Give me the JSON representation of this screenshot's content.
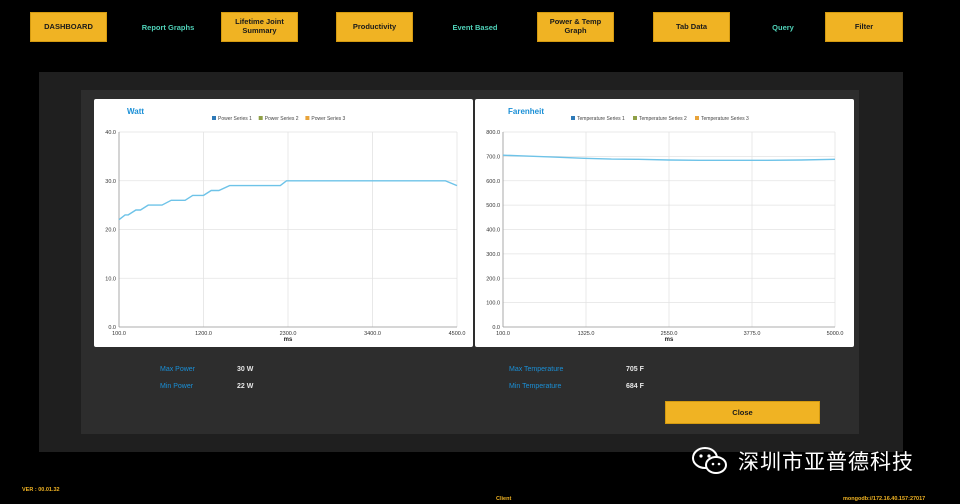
{
  "nav": {
    "dashboard": "DASHBOARD",
    "report_graphs": "Report Graphs",
    "lifetime_joint_summary": "Lifetime Joint Summary",
    "productivity": "Productivity",
    "event_based": "Event Based",
    "power_temp_graph": "Power & Temp Graph",
    "tab_data": "Tab Data",
    "query": "Query",
    "filter": "Filter"
  },
  "colors": {
    "accent": "#f0b323",
    "link": "#4fd1b8",
    "title_blue": "#1a8fd6",
    "series1": "#2e7ab8",
    "series2": "#8fa046",
    "series3": "#e8a33a",
    "line": "#6ec3e8"
  },
  "chart_data": [
    {
      "type": "line",
      "title": "Watt",
      "xlabel": "ms",
      "ylabel": "",
      "x_ticks": [
        "100.0",
        "1200.0",
        "2300.0",
        "3400.0",
        "4500.0"
      ],
      "y_ticks": [
        "0.0",
        "10.0",
        "20.0",
        "30.0",
        "40.0"
      ],
      "xlim": [
        100,
        4500
      ],
      "ylim": [
        0,
        40
      ],
      "grid": true,
      "legend_position": "top-center",
      "legend": [
        "Power Series 1",
        "Power Series 2",
        "Power Series 3"
      ],
      "series": [
        {
          "name": "Power Series 1",
          "x": [
            100,
            180,
            220,
            320,
            380,
            480,
            540,
            660,
            780,
            840,
            960,
            1060,
            1200,
            1300,
            1400,
            1540,
            1640,
            1800,
            2000,
            2200,
            2280,
            2400,
            2700,
            3000,
            3500,
            4000,
            4350,
            4500
          ],
          "y": [
            22,
            23,
            23,
            24,
            24,
            25,
            25,
            25,
            26,
            26,
            26,
            27,
            27,
            28,
            28,
            29,
            29,
            29,
            29,
            29,
            30,
            30,
            30,
            30,
            30,
            30,
            30,
            29
          ]
        }
      ]
    },
    {
      "type": "line",
      "title": "Farenheit",
      "xlabel": "ms",
      "ylabel": "",
      "x_ticks": [
        "100.0",
        "1325.0",
        "2550.0",
        "3775.0",
        "5000.0"
      ],
      "y_ticks": [
        "0.0",
        "100.0",
        "200.0",
        "300.0",
        "400.0",
        "500.0",
        "600.0",
        "700.0",
        "800.0"
      ],
      "xlim": [
        100,
        5000
      ],
      "ylim": [
        0,
        800
      ],
      "grid": true,
      "legend_position": "top-center",
      "legend": [
        "Temperature Series 1",
        "Temperature Series 2",
        "Temperature Series 3"
      ],
      "series": [
        {
          "name": "Temperature Series 1",
          "x": [
            100,
            400,
            800,
            1300,
            1700,
            2100,
            2550,
            3000,
            3500,
            4000,
            4500,
            5000
          ],
          "y": [
            705,
            702,
            698,
            692,
            689,
            688,
            685,
            684,
            684,
            684,
            685,
            688
          ]
        }
      ]
    }
  ],
  "stats": {
    "max_power_label": "Max Power",
    "max_power_value": "30 W",
    "min_power_label": "Min Power",
    "min_power_value": "22 W",
    "max_temp_label": "Max Temperature",
    "max_temp_value": "705 F",
    "min_temp_label": "Min Temperature",
    "min_temp_value": "684 F"
  },
  "close_label": "Close",
  "footer": {
    "version": "VER : 00.01.32",
    "client": "Client",
    "connection": "mongodb://172.16.40.157:27017"
  },
  "watermark": {
    "text": "深圳市亚普德科技",
    "icon": "wechat-icon"
  }
}
